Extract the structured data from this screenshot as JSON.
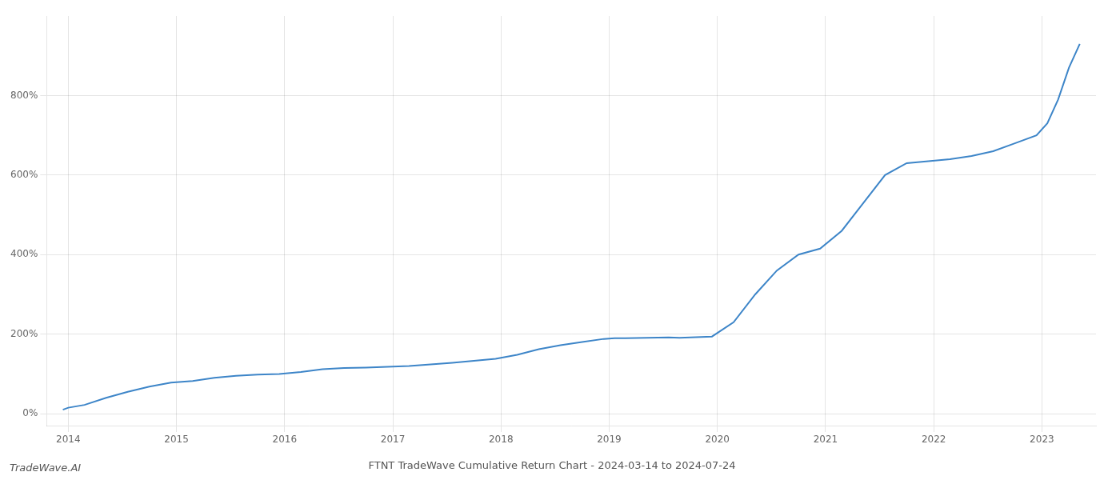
{
  "chart_data": {
    "type": "line",
    "title": "FTNT TradeWave Cumulative Return Chart - 2024-03-14 to 2024-07-24",
    "annotations": [
      "TradeWave.AI"
    ],
    "color": "#3d85c8",
    "x": [
      2013.95,
      2014.0,
      2014.15,
      2014.35,
      2014.55,
      2014.75,
      2014.95,
      2015.15,
      2015.35,
      2015.55,
      2015.75,
      2015.95,
      2016.15,
      2016.35,
      2016.55,
      2016.75,
      2016.95,
      2017.15,
      2017.35,
      2017.55,
      2017.75,
      2017.95,
      2018.15,
      2018.35,
      2018.55,
      2018.75,
      2018.95,
      2019.05,
      2019.15,
      2019.35,
      2019.55,
      2019.65,
      2019.75,
      2019.85,
      2019.95,
      2020.15,
      2020.35,
      2020.55,
      2020.75,
      2020.95,
      2021.15,
      2021.35,
      2021.55,
      2021.75,
      2021.95,
      2022.15,
      2022.35,
      2022.55,
      2022.75,
      2022.95,
      2023.05,
      2023.15,
      2023.25,
      2023.35
    ],
    "values": [
      10,
      15,
      22,
      40,
      55,
      68,
      78,
      82,
      90,
      95,
      98,
      100,
      105,
      112,
      115,
      116,
      118,
      120,
      124,
      128,
      133,
      138,
      148,
      162,
      172,
      180,
      188,
      190,
      190,
      191,
      192,
      191,
      192,
      193,
      194,
      230,
      300,
      360,
      400,
      415,
      460,
      530,
      600,
      630,
      635,
      640,
      648,
      660,
      680,
      700,
      730,
      790,
      870,
      930
    ],
    "xlim": [
      2013.8,
      2023.5
    ],
    "ylim": [
      -30,
      1000
    ],
    "xticks": [
      2014,
      2015,
      2016,
      2017,
      2018,
      2019,
      2020,
      2021,
      2022,
      2023
    ],
    "yticks": [
      {
        "value": 0,
        "label": "0%"
      },
      {
        "value": 200,
        "label": "200%"
      },
      {
        "value": 400,
        "label": "400%"
      },
      {
        "value": 600,
        "label": "600%"
      },
      {
        "value": 800,
        "label": "800%"
      }
    ],
    "grid": true
  }
}
